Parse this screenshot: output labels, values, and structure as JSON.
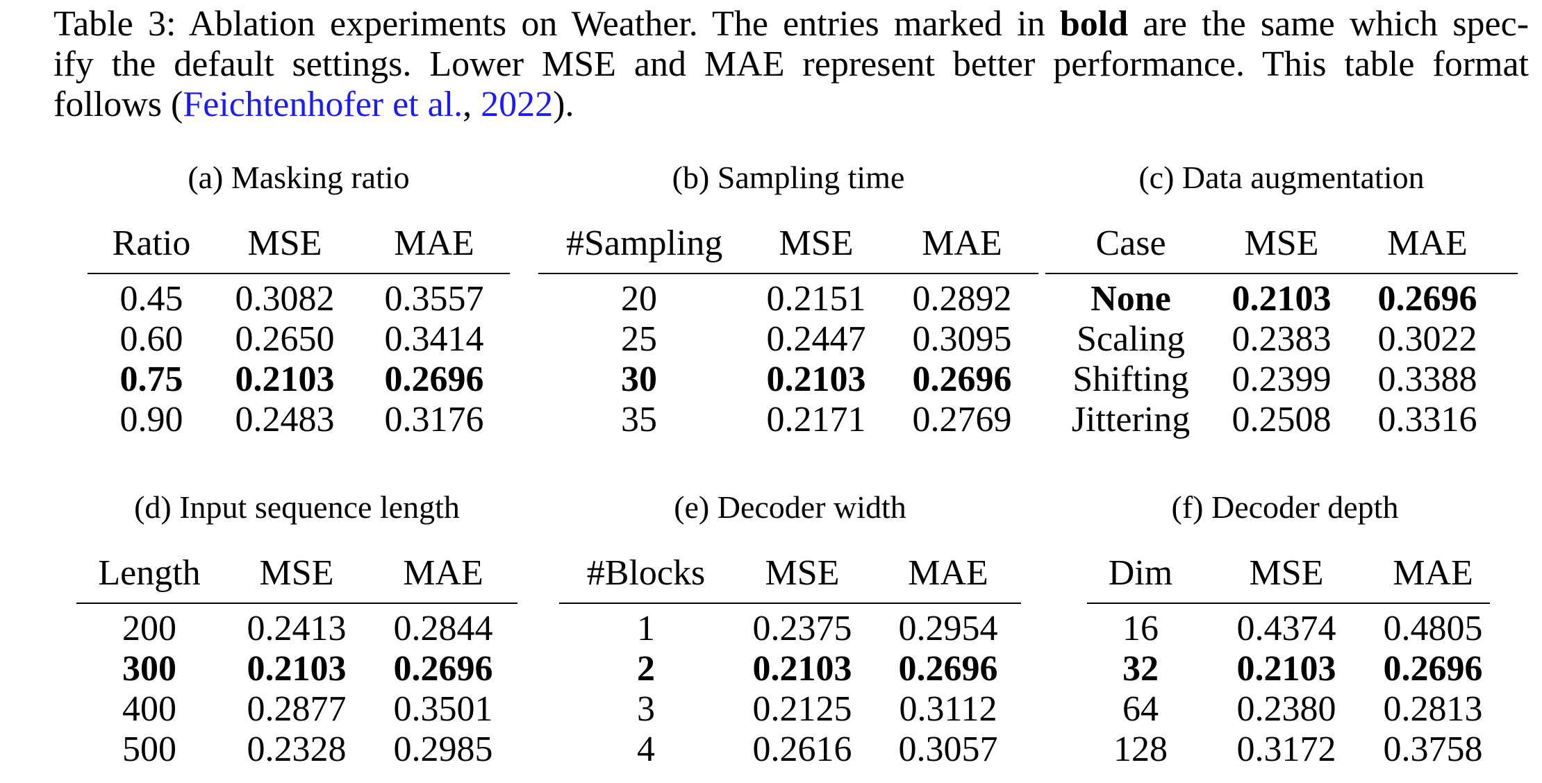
{
  "caption": {
    "line1_a": "Table 3:  Ablation experiments on Weather.  The entries marked in ",
    "line1_bold": "bold",
    "line1_b": " are the same which spec-",
    "line2": "ify the default settings.  Lower MSE and MAE represent better performance.  This table format",
    "line3_a": "follows (",
    "cite_author": "Feichtenhofer et al.",
    "cite_sep": ", ",
    "cite_year": "2022",
    "line3_b": ")."
  },
  "tables": [
    {
      "title": "(a) Masking ratio",
      "headers": [
        "Ratio",
        "MSE",
        "MAE"
      ],
      "rows": [
        [
          "0.45",
          "0.3082",
          "0.3557"
        ],
        [
          "0.60",
          "0.2650",
          "0.3414"
        ],
        [
          "0.75",
          "0.2103",
          "0.2696"
        ],
        [
          "0.90",
          "0.2483",
          "0.3176"
        ]
      ],
      "bold_row": 2
    },
    {
      "title": "(b) Sampling time",
      "headers": [
        "#Sampling",
        "MSE",
        "MAE"
      ],
      "rows": [
        [
          "20",
          "0.2151",
          "0.2892"
        ],
        [
          "25",
          "0.2447",
          "0.3095"
        ],
        [
          "30",
          "0.2103",
          "0.2696"
        ],
        [
          "35",
          "0.2171",
          "0.2769"
        ]
      ],
      "bold_row": 2
    },
    {
      "title": "(c) Data augmentation",
      "headers": [
        "Case",
        "MSE",
        "MAE"
      ],
      "rows": [
        [
          "None",
          "0.2103",
          "0.2696"
        ],
        [
          "Scaling",
          "0.2383",
          "0.3022"
        ],
        [
          "Shifting",
          "0.2399",
          "0.3388"
        ],
        [
          "Jittering",
          "0.2508",
          "0.3316"
        ]
      ],
      "bold_row": 0
    },
    {
      "title": "(d) Input sequence length",
      "headers": [
        "Length",
        "MSE",
        "MAE"
      ],
      "rows": [
        [
          "200",
          "0.2413",
          "0.2844"
        ],
        [
          "300",
          "0.2103",
          "0.2696"
        ],
        [
          "400",
          "0.2877",
          "0.3501"
        ],
        [
          "500",
          "0.2328",
          "0.2985"
        ]
      ],
      "bold_row": 1
    },
    {
      "title": "(e) Decoder width",
      "headers": [
        "#Blocks",
        "MSE",
        "MAE"
      ],
      "rows": [
        [
          "1",
          "0.2375",
          "0.2954"
        ],
        [
          "2",
          "0.2103",
          "0.2696"
        ],
        [
          "3",
          "0.2125",
          "0.3112"
        ],
        [
          "4",
          "0.2616",
          "0.3057"
        ]
      ],
      "bold_row": 1
    },
    {
      "title": "(f) Decoder depth",
      "headers": [
        "Dim",
        "MSE",
        "MAE"
      ],
      "rows": [
        [
          "16",
          "0.4374",
          "0.4805"
        ],
        [
          "32",
          "0.2103",
          "0.2696"
        ],
        [
          "64",
          "0.2380",
          "0.2813"
        ],
        [
          "128",
          "0.3172",
          "0.3758"
        ]
      ],
      "bold_row": 1
    }
  ]
}
